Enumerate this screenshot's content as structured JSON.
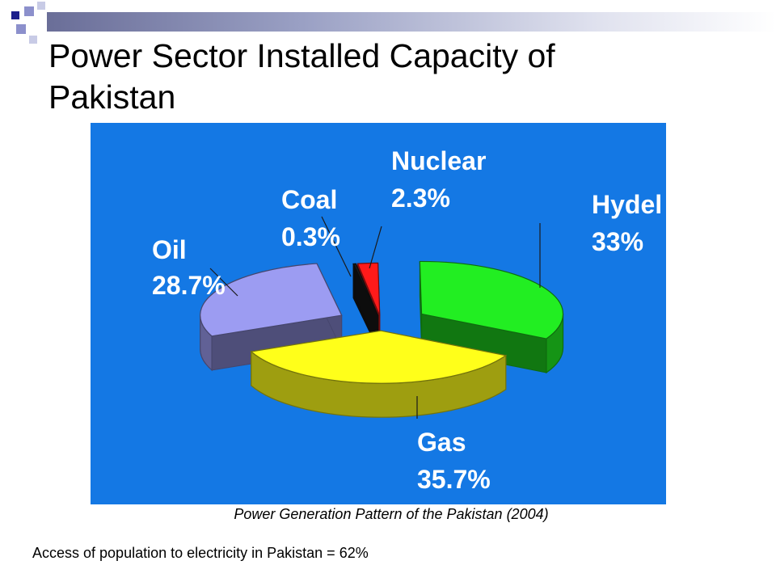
{
  "slide": {
    "title": "Power Sector Installed Capacity of\nPakistan",
    "caption": "Power Generation Pattern of the Pakistan (2004)",
    "footnote": "Access of population to electricity in Pakistan = 62%"
  },
  "chart_data": {
    "type": "pie",
    "title": "",
    "three_d": true,
    "background_color": "#1478e4",
    "slices": [
      {
        "label": "Nuclear",
        "value_label": "2.3%",
        "value": 2.3,
        "color": "#ff1a1a",
        "exploded": true
      },
      {
        "label": "Hydel",
        "value_label": "33%",
        "value": 33,
        "color": "#22ee22",
        "exploded": true
      },
      {
        "label": "Gas",
        "value_label": "35.7%",
        "value": 35.7,
        "color": "#ffff1a",
        "exploded": true
      },
      {
        "label": "Oil",
        "value_label": "28.7%",
        "value": 28.7,
        "color": "#9c9cf2",
        "exploded": true
      },
      {
        "label": "Coal",
        "value_label": "0.3%",
        "value": 0.3,
        "color": "#1a1a1a",
        "exploded": true
      }
    ]
  },
  "theme": {
    "decor_dark": "#1c1f8c",
    "decor_light": "#8c90cc",
    "decor_pale": "#c8cbe6"
  }
}
